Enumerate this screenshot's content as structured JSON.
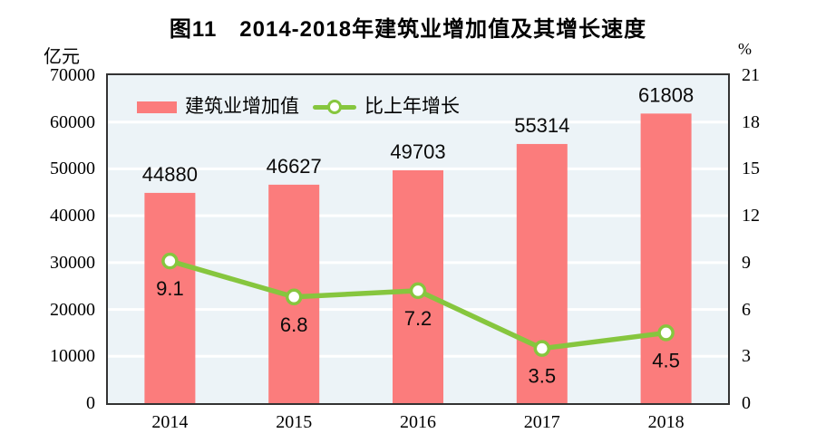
{
  "title": "图11　2014-2018年建筑业增加值及其增长速度",
  "left_axis": {
    "unit": "亿元",
    "ticks": [
      70000,
      60000,
      50000,
      40000,
      30000,
      20000,
      10000,
      0
    ],
    "max": 70000
  },
  "right_axis": {
    "unit": "%",
    "ticks": [
      21,
      18,
      15,
      12,
      9,
      6,
      3,
      0
    ],
    "max": 21
  },
  "legend": {
    "bar_label": "建筑业增加值",
    "line_label": "比上年增长",
    "position": "top-left"
  },
  "chart_data": {
    "type": "bar",
    "title": "图11　2014-2018年建筑业增加值及其增长速度",
    "categories": [
      "2014",
      "2015",
      "2016",
      "2017",
      "2018"
    ],
    "series": [
      {
        "name": "建筑业增加值",
        "type": "bar",
        "axis": "left",
        "values": [
          44880,
          46627,
          49703,
          55314,
          61808
        ],
        "color": "#fb7c7c"
      },
      {
        "name": "比上年增长",
        "type": "line",
        "axis": "right",
        "values": [
          9.1,
          6.8,
          7.2,
          3.5,
          4.5
        ],
        "color": "#86c63e",
        "marker_fill": "#ffffff"
      }
    ],
    "xlabel": "",
    "ylabel_left": "亿元",
    "ylabel_right": "%",
    "left_ylim": [
      0,
      70000
    ],
    "right_ylim": [
      0,
      21
    ],
    "grid": true,
    "legend_position": "top-left"
  },
  "colors": {
    "plot_background": "#ecf3f7",
    "gridline": "#ffffff",
    "axis_border": "#333333",
    "bar": "#fb7c7c",
    "line": "#86c63e",
    "marker_fill": "#ffffff",
    "text": "#000000"
  }
}
